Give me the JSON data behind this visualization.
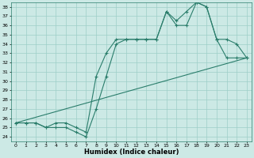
{
  "xlabel": "Humidex (Indice chaleur)",
  "xlim": [
    -0.5,
    23.5
  ],
  "ylim": [
    23.5,
    38.5
  ],
  "yticks": [
    24,
    25,
    26,
    27,
    28,
    29,
    30,
    31,
    32,
    33,
    34,
    35,
    36,
    37,
    38
  ],
  "xticks": [
    0,
    1,
    2,
    3,
    4,
    5,
    6,
    7,
    8,
    9,
    10,
    11,
    12,
    13,
    14,
    15,
    16,
    17,
    18,
    19,
    20,
    21,
    22,
    23
  ],
  "line_color": "#2a7d6b",
  "bg_color": "#cce9e5",
  "grid_color": "#9dcec8",
  "curve1_x": [
    0,
    1,
    2,
    3,
    4,
    5,
    6,
    7,
    8,
    9,
    10,
    11,
    12,
    13,
    14,
    15,
    16,
    17,
    18,
    19,
    20,
    21,
    22,
    23
  ],
  "curve1_y": [
    25.5,
    25.5,
    25.5,
    25.0,
    25.5,
    25.5,
    25.0,
    24.5,
    30.5,
    33.0,
    34.5,
    34.5,
    34.5,
    34.5,
    34.5,
    37.5,
    36.5,
    37.5,
    38.5,
    38.0,
    34.5,
    34.5,
    34.0,
    32.5
  ],
  "curve2_x": [
    0,
    1,
    2,
    3,
    4,
    5,
    6,
    7,
    8,
    9,
    10,
    11,
    12,
    13,
    14,
    15,
    16,
    17,
    18,
    19,
    20,
    21,
    22,
    23
  ],
  "curve2_y": [
    25.5,
    25.5,
    25.5,
    25.0,
    25.0,
    25.0,
    24.5,
    24.0,
    27.0,
    30.5,
    34.0,
    34.5,
    34.5,
    34.5,
    34.5,
    37.5,
    36.0,
    36.0,
    38.5,
    38.0,
    34.5,
    32.5,
    32.5,
    32.5
  ],
  "trend_x": [
    0,
    23
  ],
  "trend_y": [
    25.5,
    32.5
  ]
}
